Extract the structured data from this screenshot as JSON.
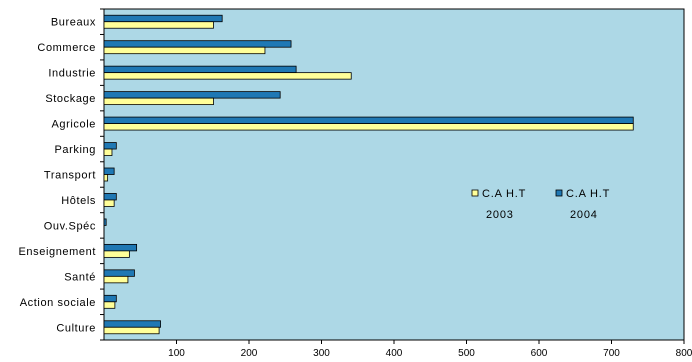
{
  "chart_data": {
    "type": "bar",
    "orientation": "horizontal",
    "categories": [
      "Bureaux",
      "Commerce",
      "Industrie",
      "Stockage",
      "Agricole",
      "Parking",
      "Transport",
      "Hôtels",
      "Ouv.Spéc",
      "Enseignement",
      "Santé",
      "Action sociale",
      "Culture"
    ],
    "series": [
      {
        "name": "C.A H.T 2004",
        "color": "#1f78b4",
        "values": [
          163,
          258,
          265,
          243,
          730,
          17,
          14,
          17,
          3,
          45,
          42,
          17,
          78
        ]
      },
      {
        "name": "C.A H.T 2003",
        "color": "#ffff99",
        "values": [
          151,
          222,
          341,
          151,
          730,
          11,
          5,
          14,
          0,
          35,
          33,
          15,
          76
        ]
      }
    ],
    "xlim": [
      0,
      800
    ],
    "xticks": [
      "100",
      "200",
      "300",
      "400",
      "500",
      "600",
      "700",
      "800"
    ],
    "grid": false,
    "plot_background": "#add8e6",
    "legend": {
      "position": "right",
      "entries": [
        {
          "line1": "C.A H.T",
          "line2": "2003",
          "color": "#ffff99"
        },
        {
          "line1": "C.A H.T",
          "line2": "2004",
          "color": "#1f78b4"
        }
      ]
    }
  }
}
